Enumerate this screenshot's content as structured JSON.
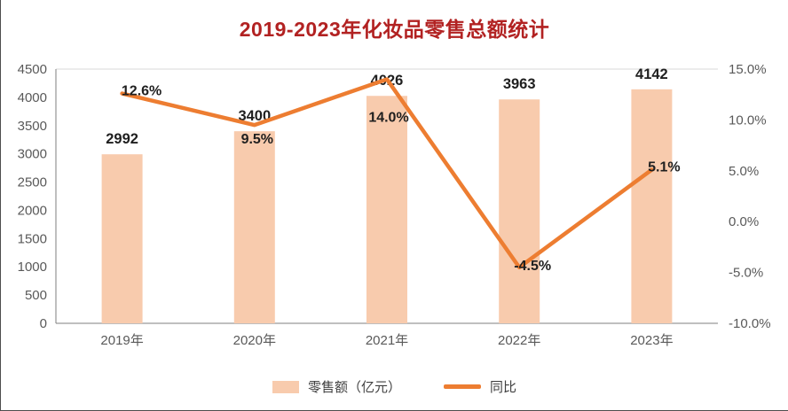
{
  "chart_data": {
    "type": "combo",
    "title": "2019-2023年化妆品零售总额统计",
    "categories": [
      "2019年",
      "2020年",
      "2021年",
      "2022年",
      "2023年"
    ],
    "series": [
      {
        "name": "零售额（亿元）",
        "type": "bar",
        "axis": "left",
        "color": "#F8CBAD",
        "values": [
          2992,
          3400,
          4026,
          3963,
          4142
        ],
        "data_labels": [
          "2992",
          "3400",
          "4026",
          "3963",
          "4142"
        ]
      },
      {
        "name": "同比",
        "type": "line",
        "axis": "right",
        "color": "#ED7D31",
        "values": [
          12.6,
          9.5,
          14.0,
          -4.5,
          5.1
        ],
        "data_labels": [
          "12.6%",
          "9.5%",
          "14.0%",
          "-4.5%",
          "5.1%"
        ]
      }
    ],
    "left_axis": {
      "min": 0,
      "max": 4500,
      "step": 500,
      "tick_labels": [
        "0",
        "500",
        "1000",
        "1500",
        "2000",
        "2500",
        "3000",
        "3500",
        "4000",
        "4500"
      ]
    },
    "right_axis": {
      "min": -10,
      "max": 15,
      "step": 5,
      "tick_labels": [
        "-10.0%",
        "-5.0%",
        "0.0%",
        "5.0%",
        "10.0%",
        "15.0%"
      ]
    },
    "legend": {
      "position": "bottom",
      "items": [
        "零售额（亿元）",
        "同比"
      ]
    },
    "grid": "top-edge-only",
    "colors": {
      "title": "#B22222",
      "axis_text": "#595959",
      "data_label": "#1f1f1f",
      "axis_line": "#7F7F7F",
      "gridline": "#D9D9D9"
    }
  }
}
